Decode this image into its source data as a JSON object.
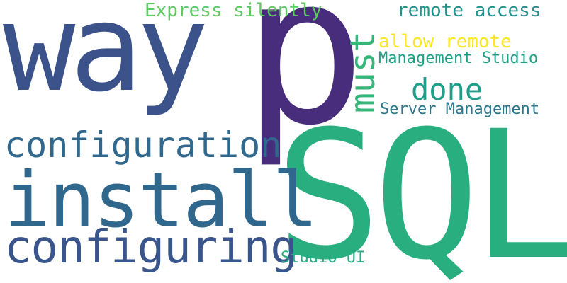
{
  "words": [
    {
      "id": "way",
      "text": "way",
      "color": "#3b528b"
    },
    {
      "id": "p",
      "text": "p",
      "color": "#472d7b"
    },
    {
      "id": "express",
      "text": "Express silently",
      "color": "#5ec962"
    },
    {
      "id": "remote_access",
      "text": "remote access",
      "color": "#21918c"
    },
    {
      "id": "must",
      "text": "must",
      "color": "#35b779"
    },
    {
      "id": "allow_remote",
      "text": "allow remote",
      "color": "#fde725"
    },
    {
      "id": "management_studio",
      "text": "Management Studio",
      "color": "#1fa187"
    },
    {
      "id": "done",
      "text": "done",
      "color": "#1f9e89"
    },
    {
      "id": "server_management",
      "text": "Server Management",
      "color": "#2a788e"
    },
    {
      "id": "configuration",
      "text": "configuration",
      "color": "#31688e"
    },
    {
      "id": "sql",
      "text": "SQL",
      "color": "#29af7f"
    },
    {
      "id": "install",
      "text": "install",
      "color": "#30678d"
    },
    {
      "id": "configuring",
      "text": "configuring",
      "color": "#3a548c"
    },
    {
      "id": "studio_ui",
      "text": "Studio UI",
      "color": "#25ac82"
    }
  ]
}
